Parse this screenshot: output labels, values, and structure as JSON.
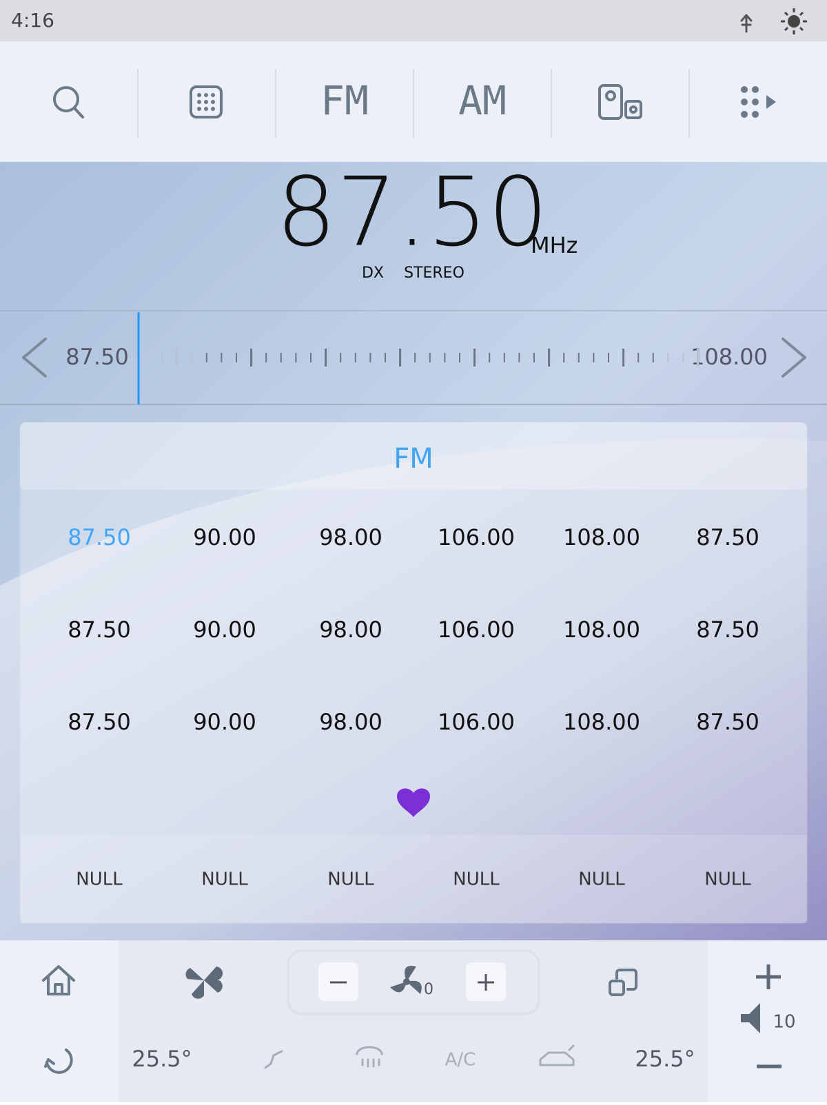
{
  "status_bar": {
    "time": "4:16"
  },
  "toolbar": {
    "fm": "FM",
    "am": "AM"
  },
  "tuner": {
    "frequency": "87.50",
    "unit": "MHz",
    "flags": [
      "DX",
      "STEREO"
    ],
    "range_start": "87.50",
    "range_end": "108.00"
  },
  "presets": {
    "band": "FM",
    "rows": [
      [
        "87.50",
        "90.00",
        "98.00",
        "106.00",
        "108.00",
        "87.50"
      ],
      [
        "87.50",
        "90.00",
        "98.00",
        "106.00",
        "108.00",
        "87.50"
      ],
      [
        "87.50",
        "90.00",
        "98.00",
        "106.00",
        "108.00",
        "87.50"
      ]
    ],
    "names": [
      "NULL",
      "NULL",
      "NULL",
      "NULL",
      "NULL",
      "NULL"
    ]
  },
  "climate": {
    "fan_speed": "0",
    "left_temp": "25.5°",
    "right_temp": "25.5°",
    "ac": "A/C",
    "volume": "10"
  }
}
